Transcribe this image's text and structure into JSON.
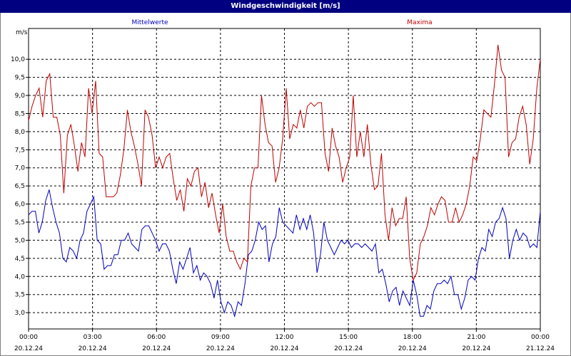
{
  "window": {
    "title": "Windgeschwindigkeit [m/s]"
  },
  "chart_data": {
    "type": "line",
    "title": "Windgeschwindigkeit [m/s]",
    "ylabel": "m/s",
    "ylim": [
      2.55,
      10.85
    ],
    "yticks": [
      "3,0",
      "3,5",
      "4,0",
      "4,5",
      "5,0",
      "5,5",
      "6,0",
      "6,5",
      "7,0",
      "7,5",
      "8,0",
      "8,5",
      "9,0",
      "9,5",
      "10,0"
    ],
    "xtick_times": [
      "00:00",
      "03:00",
      "06:00",
      "09:00",
      "12:00",
      "15:00",
      "18:00",
      "21:00",
      "00:00"
    ],
    "xtick_dates": [
      "20.12.24",
      "20.12.24",
      "20.12.24",
      "20.12.24",
      "20.12.24",
      "20.12.24",
      "20.12.24",
      "20.12.24",
      "21.12.24"
    ],
    "x_range_hours": [
      0,
      24
    ],
    "grid": true,
    "legend_position": "top",
    "series": [
      {
        "name": "Mittelwerte",
        "color": "#0000c0",
        "values": [
          5.7,
          5.8,
          5.8,
          5.2,
          5.5,
          6.1,
          6.4,
          5.9,
          5.5,
          5.2,
          4.5,
          4.4,
          4.8,
          4.7,
          4.5,
          5.0,
          5.2,
          5.8,
          6.0,
          6.2,
          5.0,
          4.9,
          4.2,
          4.3,
          4.3,
          4.6,
          4.6,
          5.0,
          5.0,
          5.2,
          4.9,
          4.8,
          4.7,
          5.3,
          5.4,
          5.4,
          5.2,
          5.0,
          4.7,
          4.9,
          4.9,
          4.7,
          4.2,
          3.8,
          4.4,
          4.2,
          4.5,
          4.8,
          4.1,
          4.3,
          3.9,
          4.1,
          4.0,
          3.8,
          3.4,
          3.9,
          3.3,
          3.0,
          3.3,
          3.2,
          2.9,
          3.3,
          3.2,
          3.8,
          4.6,
          4.7,
          5.0,
          5.5,
          5.3,
          5.4,
          4.4,
          4.9,
          5.1,
          5.9,
          5.5,
          5.4,
          5.3,
          5.2,
          5.7,
          5.3,
          5.6,
          5.3,
          5.7,
          5.2,
          4.1,
          4.6,
          5.5,
          5.0,
          4.8,
          4.6,
          4.8,
          5.0,
          4.9,
          5.0,
          4.8,
          4.9,
          4.9,
          4.8,
          4.9,
          4.8,
          4.7,
          4.9,
          4.1,
          4.2,
          3.8,
          3.3,
          3.6,
          3.7,
          3.2,
          3.6,
          3.4,
          3.2,
          3.9,
          3.5,
          2.9,
          2.9,
          3.2,
          3.1,
          3.6,
          3.8,
          3.8,
          3.9,
          3.8,
          4.0,
          3.5,
          3.5,
          3.1,
          3.4,
          3.9,
          4.0,
          3.9,
          4.5,
          4.8,
          4.7,
          5.3,
          5.1,
          5.5,
          5.6,
          5.9,
          5.6,
          4.5,
          5.0,
          5.3,
          5.0,
          5.2,
          5.1,
          4.8,
          4.9,
          4.8,
          5.8
        ]
      },
      {
        "name": "Maxima",
        "color": "#c00000",
        "values": [
          8.3,
          8.7,
          9.0,
          9.2,
          8.4,
          9.4,
          9.6,
          8.4,
          8.4,
          7.9,
          6.3,
          7.9,
          8.2,
          7.6,
          6.9,
          7.7,
          7.3,
          9.2,
          8.5,
          9.4,
          7.4,
          7.3,
          6.2,
          6.2,
          6.2,
          6.3,
          6.8,
          7.5,
          8.6,
          8.0,
          7.6,
          7.1,
          6.5,
          8.6,
          8.4,
          7.9,
          7.0,
          7.3,
          7.0,
          7.3,
          7.4,
          6.7,
          6.1,
          6.4,
          5.8,
          6.7,
          6.5,
          6.9,
          7.0,
          6.2,
          6.6,
          5.9,
          6.3,
          5.7,
          5.2,
          6.0,
          5.1,
          4.7,
          4.7,
          4.4,
          4.2,
          4.5,
          4.4,
          6.5,
          7.0,
          7.0,
          9.0,
          8.2,
          7.7,
          7.6,
          6.6,
          7.0,
          7.8,
          9.2,
          7.8,
          8.2,
          8.1,
          8.6,
          8.1,
          8.7,
          8.8,
          8.7,
          8.8,
          8.8,
          7.4,
          6.9,
          8.1,
          7.6,
          7.3,
          6.6,
          7.0,
          7.3,
          9.0,
          7.3,
          8.0,
          7.3,
          8.2,
          7.1,
          6.4,
          6.5,
          7.4,
          5.7,
          5.0,
          5.9,
          5.4,
          5.6,
          5.6,
          6.2,
          4.5,
          3.9,
          4.1,
          4.9,
          5.1,
          5.4,
          5.9,
          5.7,
          6.0,
          6.2,
          6.1,
          5.5,
          5.5,
          5.9,
          5.5,
          5.7,
          6.0,
          6.5,
          7.3,
          7.2,
          7.8,
          8.6,
          8.5,
          8.4,
          9.3,
          10.4,
          9.7,
          9.5,
          7.3,
          7.7,
          7.8,
          8.4,
          8.7,
          8.2,
          7.1,
          7.8,
          9.2,
          10.0
        ]
      }
    ]
  }
}
